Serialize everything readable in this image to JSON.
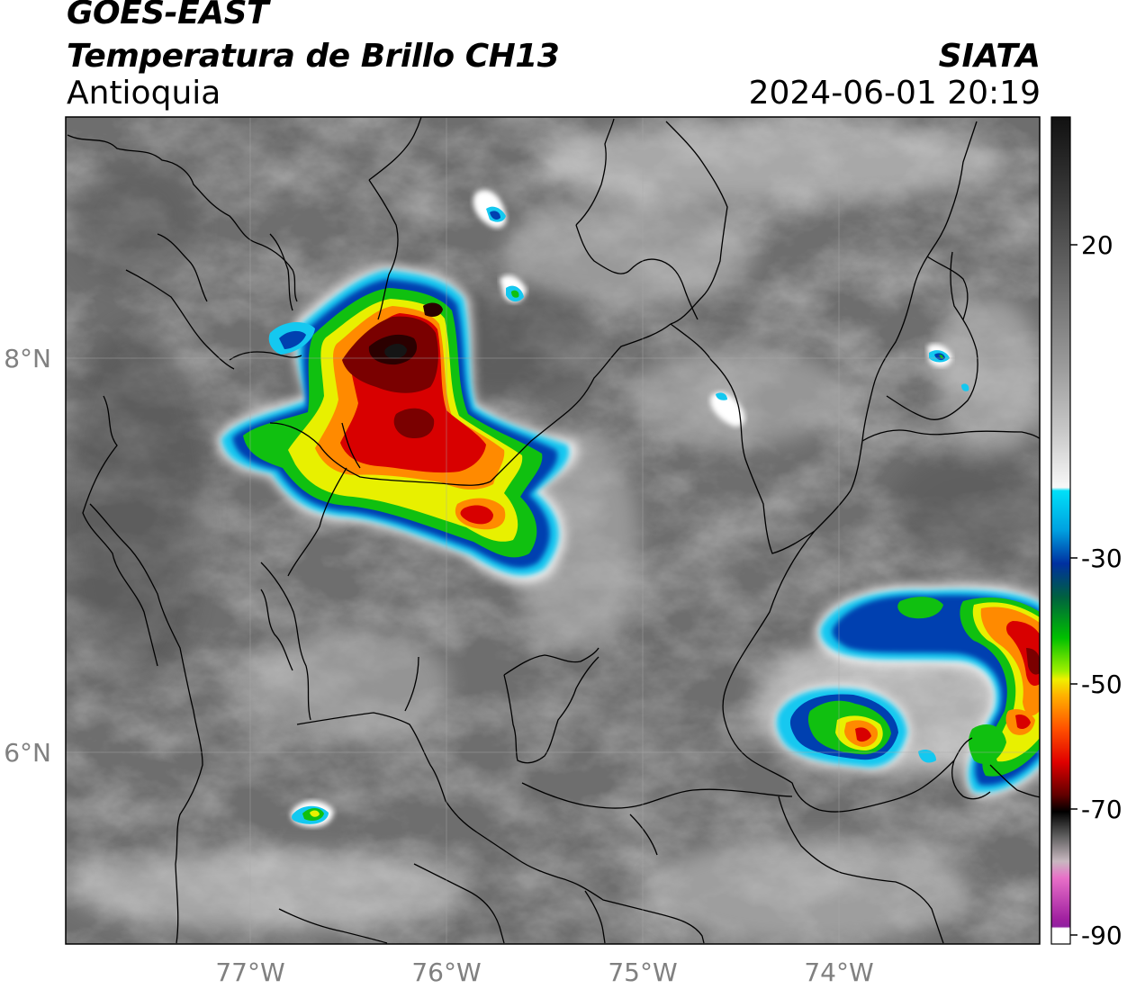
{
  "header": {
    "satellite": "GOES-EAST",
    "product": "Temperatura de Brillo CH13",
    "region": "Antioquia",
    "agency": "SIATA",
    "datetime": "2024-06-01 20:19"
  },
  "map_axes": {
    "lon_labels": [
      "77°W",
      "76°W",
      "75°W",
      "74°W"
    ],
    "lat_labels": [
      "8°N",
      "6°N"
    ]
  },
  "colorbar": {
    "unit_hint": "brightness temperature",
    "ticks": [
      "20",
      "-30",
      "-50",
      "-70",
      "-90"
    ],
    "colors": {
      "gray_high": "#2a2a2a",
      "gray_low": "#f4f4f4",
      "cyan": "#00d8f0",
      "blue": "#0030a0",
      "green": "#00c000",
      "yellow": "#f0f000",
      "orange": "#ff8000",
      "red": "#d00000",
      "dark_red": "#500000",
      "black": "#000000",
      "pink": "#e070c0",
      "purple": "#a020a0"
    }
  },
  "storm_colors": {
    "cyan": "#14c8f0",
    "blue": "#0040b0",
    "green": "#10c010",
    "yellow": "#e8f000",
    "orange": "#ff8a00",
    "red": "#d80000",
    "dark_red": "#7a0000",
    "core": "#2b0000"
  }
}
